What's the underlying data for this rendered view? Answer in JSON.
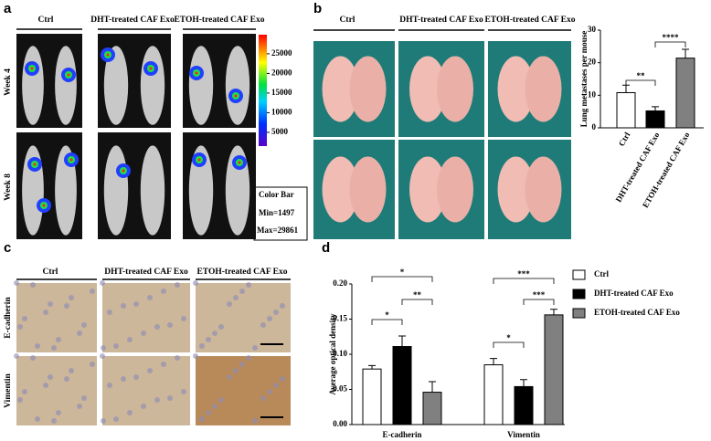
{
  "panels": {
    "a": {
      "label": "a",
      "groups": [
        "Ctrl",
        "DHT-treated CAF Exo",
        "ETOH-treated CAF Exo"
      ],
      "rows": [
        "Week 4",
        "Week 8"
      ],
      "colorbar": {
        "ticks": [
          5000,
          10000,
          15000,
          20000,
          25000
        ],
        "range": [
          1497,
          29861
        ],
        "title": "Color Bar",
        "min": "Min=1497",
        "max": "Max=29861"
      }
    },
    "b": {
      "label": "b",
      "groups": [
        "Ctrl",
        "DHT-treated CAF Exo",
        "ETOH-treated CAF Exo"
      ]
    },
    "c": {
      "label": "c",
      "groups": [
        "Ctrl",
        "DHT-treated CAF Exo",
        "ETOH-treated CAF Exo"
      ],
      "rows": [
        "E-cadherin",
        "Vimentin"
      ]
    },
    "d": {
      "label": "d"
    }
  },
  "chart_data": [
    {
      "type": "bar",
      "ylabel": "Lung metastases per mouse",
      "categories": [
        "Ctrl",
        "DHT-treated CAF Exo",
        "ETOH-treated CAF Exo"
      ],
      "values": [
        10.8,
        5.2,
        21.4
      ],
      "errors": [
        2.3,
        1.3,
        2.7
      ],
      "colors": [
        "#ffffff",
        "#000000",
        "#808080"
      ],
      "ylim": [
        0,
        30
      ],
      "yticks": [
        0,
        10,
        20,
        30
      ],
      "annotations": [
        {
          "text": "**",
          "between": [
            "Ctrl",
            "DHT-treated CAF Exo"
          ]
        },
        {
          "text": "****",
          "between": [
            "DHT-treated CAF Exo",
            "ETOH-treated CAF Exo"
          ]
        }
      ]
    },
    {
      "type": "grouped_bar",
      "ylabel": "Average optical density",
      "categories": [
        "E-cadherin",
        "Vimentin"
      ],
      "series": [
        {
          "name": "Ctrl",
          "color": "#ffffff",
          "values": [
            0.079,
            0.085
          ],
          "errors": [
            0.005,
            0.009
          ]
        },
        {
          "name": "DHT-treated CAF Exo",
          "color": "#000000",
          "values": [
            0.111,
            0.054
          ],
          "errors": [
            0.015,
            0.01
          ]
        },
        {
          "name": "ETOH-treated CAF Exo",
          "color": "#808080",
          "values": [
            0.046,
            0.156
          ],
          "errors": [
            0.015,
            0.008
          ]
        }
      ],
      "ylim": [
        0,
        0.2
      ],
      "yticks": [
        {
          "value": 0,
          "label": "0.00"
        },
        {
          "value": 0.05,
          "label": "0.05"
        },
        {
          "value": 0.1,
          "label": "0.10"
        },
        {
          "value": 0.15,
          "label": "0.15"
        },
        {
          "value": 0.2,
          "label": "0.20"
        }
      ],
      "legend": "right",
      "annotations": [
        {
          "text": "*",
          "category": "E-cadherin",
          "between": [
            "Ctrl",
            "DHT-treated CAF Exo"
          ]
        },
        {
          "text": "**",
          "category": "E-cadherin",
          "between": [
            "DHT-treated CAF Exo",
            "ETOH-treated CAF Exo"
          ]
        },
        {
          "text": "*",
          "category": "E-cadherin",
          "between": [
            "Ctrl",
            "ETOH-treated CAF Exo"
          ]
        },
        {
          "text": "*",
          "category": "Vimentin",
          "between": [
            "Ctrl",
            "DHT-treated CAF Exo"
          ]
        },
        {
          "text": "***",
          "category": "Vimentin",
          "between": [
            "DHT-treated CAF Exo",
            "ETOH-treated CAF Exo"
          ]
        },
        {
          "text": "***",
          "category": "Vimentin",
          "between": [
            "Ctrl",
            "ETOH-treated CAF Exo"
          ]
        }
      ]
    }
  ]
}
